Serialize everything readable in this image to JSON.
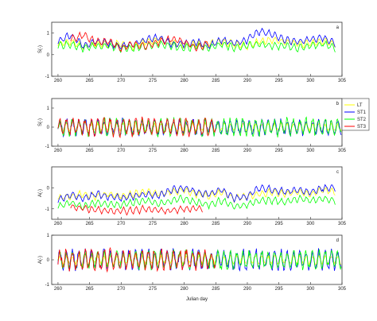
{
  "chart_data": {
    "type": "line",
    "xlabel": "Julian day",
    "xlim": [
      259,
      305
    ],
    "xticks": [
      260,
      265,
      270,
      275,
      280,
      285,
      290,
      295,
      300,
      305
    ],
    "grid": false,
    "legend": {
      "placement": "right of panel b",
      "entries": [
        "LT",
        "ST1",
        "ST2",
        "ST3"
      ]
    },
    "series_colors": {
      "LT": "#ffff00",
      "ST1": "#0000ff",
      "ST2": "#00ff00",
      "ST3": "#ff0000"
    },
    "panels": [
      {
        "id": "a",
        "letter": "a",
        "ylabel": "S(-)",
        "ylim": [
          -1,
          1.5
        ],
        "yticks": [
          -1,
          0,
          1
        ],
        "shape": "smooth",
        "series": [
          {
            "name": "LT",
            "x": [
              260,
              262,
              264,
              266,
              268,
              270,
              272,
              274,
              276,
              278,
              280,
              282,
              284,
              286,
              288,
              290,
              292,
              294,
              296,
              298,
              300,
              302,
              304
            ],
            "values": [
              0.5,
              0.6,
              0.4,
              0.5,
              0.5,
              0.5,
              0.4,
              0.6,
              0.7,
              0.6,
              0.4,
              0.5,
              0.5,
              0.6,
              0.5,
              0.4,
              0.6,
              0.7,
              0.6,
              0.5,
              0.5,
              0.6,
              0.5
            ]
          },
          {
            "name": "ST1",
            "x": [
              260,
              262,
              264,
              266,
              268,
              270,
              272,
              274,
              276,
              278,
              280,
              282,
              284,
              286,
              288,
              290,
              292,
              294,
              296,
              298,
              300,
              302,
              304
            ],
            "values": [
              0.6,
              0.9,
              0.4,
              0.6,
              0.5,
              0.4,
              0.5,
              0.7,
              0.8,
              0.5,
              0.5,
              0.6,
              0.4,
              0.7,
              0.5,
              0.7,
              1.1,
              0.9,
              0.7,
              0.6,
              0.7,
              0.8,
              0.5
            ]
          },
          {
            "name": "ST2",
            "x": [
              260,
              262,
              264,
              266,
              268,
              270,
              272,
              274,
              276,
              278,
              280,
              282,
              284,
              286,
              288,
              290,
              292,
              294,
              296,
              298,
              300,
              302,
              304
            ],
            "values": [
              0.4,
              0.5,
              0.3,
              0.4,
              0.4,
              0.3,
              0.3,
              0.4,
              0.5,
              0.4,
              0.3,
              0.4,
              0.3,
              0.5,
              0.3,
              0.4,
              0.5,
              0.4,
              0.4,
              0.3,
              0.4,
              0.5,
              0.3
            ]
          },
          {
            "name": "ST3",
            "x": [
              262,
              264,
              266,
              268,
              270,
              272,
              274,
              276,
              278,
              280,
              282,
              284
            ],
            "values": [
              0.7,
              0.9,
              0.6,
              0.6,
              0.3,
              0.5,
              0.4,
              0.6,
              0.7,
              0.6,
              0.3,
              0.6
            ]
          }
        ]
      },
      {
        "id": "b",
        "letter": "b",
        "ylabel": "S(-)",
        "ylim": [
          -1,
          1.5
        ],
        "yticks": [
          -1,
          0,
          1
        ],
        "shape": "oscillating",
        "series": [
          {
            "name": "LT",
            "x": [
              260,
              305
            ],
            "amplitude": [
              0.25,
              0.25
            ],
            "baseline": 0.0
          },
          {
            "name": "ST1",
            "x": [
              260,
              305
            ],
            "amplitude": [
              0.45,
              0.45
            ],
            "baseline": 0.0
          },
          {
            "name": "ST2",
            "x": [
              260,
              305
            ],
            "amplitude": [
              0.5,
              0.5
            ],
            "baseline": 0.0
          },
          {
            "name": "ST3",
            "x": [
              260,
              285
            ],
            "amplitude": [
              0.5,
              0.5
            ],
            "baseline": 0.0
          }
        ]
      },
      {
        "id": "c",
        "letter": "c",
        "ylabel": "A(-)",
        "ylim": [
          -1.5,
          1.0
        ],
        "yticks": [
          -1,
          0
        ],
        "shape": "smooth",
        "series": [
          {
            "name": "LT",
            "x": [
              260,
              262,
              264,
              266,
              268,
              270,
              272,
              274,
              276,
              278,
              280,
              282,
              284,
              286,
              288,
              290,
              292,
              294,
              296,
              298,
              300,
              302,
              304
            ],
            "values": [
              -0.5,
              -0.4,
              -0.3,
              -0.4,
              -0.3,
              -0.4,
              -0.3,
              -0.2,
              -0.3,
              -0.2,
              -0.1,
              -0.3,
              -0.4,
              -0.2,
              -0.5,
              -0.4,
              -0.3,
              -0.2,
              -0.3,
              -0.2,
              -0.3,
              -0.1,
              -0.2
            ]
          },
          {
            "name": "ST1",
            "x": [
              260,
              262,
              264,
              266,
              268,
              270,
              272,
              274,
              276,
              278,
              280,
              282,
              284,
              286,
              288,
              290,
              292,
              294,
              296,
              298,
              300,
              302,
              304
            ],
            "values": [
              -0.6,
              -0.3,
              -0.5,
              -0.3,
              -0.4,
              -0.5,
              -0.4,
              -0.3,
              -0.4,
              -0.1,
              0.0,
              -0.2,
              -0.3,
              -0.1,
              -0.5,
              -0.4,
              0.0,
              -0.1,
              -0.2,
              -0.1,
              -0.2,
              0.0,
              0.0
            ]
          },
          {
            "name": "ST2",
            "x": [
              260,
              262,
              264,
              266,
              268,
              270,
              272,
              274,
              276,
              278,
              280,
              282,
              284,
              286,
              288,
              290,
              292,
              294,
              296,
              298,
              300,
              302,
              304
            ],
            "values": [
              -0.9,
              -0.7,
              -0.9,
              -0.7,
              -0.8,
              -0.8,
              -0.7,
              -0.6,
              -0.8,
              -0.6,
              -0.5,
              -0.7,
              -0.8,
              -0.6,
              -0.9,
              -0.8,
              -0.6,
              -0.6,
              -0.7,
              -0.5,
              -0.6,
              -0.5,
              -0.6
            ]
          },
          {
            "name": "ST3",
            "x": [
              262,
              265,
              268,
              271,
              274,
              277,
              280,
              283
            ],
            "values": [
              -0.9,
              -1.0,
              -1.1,
              -1.1,
              -1.0,
              -1.1,
              -1.0,
              -1.0
            ]
          }
        ]
      },
      {
        "id": "d",
        "letter": "d",
        "ylabel": "A(-)",
        "ylim": [
          -1,
          1
        ],
        "yticks": [
          -1,
          0,
          1
        ],
        "shape": "oscillating",
        "series": [
          {
            "name": "LT",
            "x": [
              260,
              305
            ],
            "amplitude": [
              0.2,
              0.2
            ],
            "baseline": 0.0
          },
          {
            "name": "ST1",
            "x": [
              260,
              305
            ],
            "amplitude": [
              0.45,
              0.45
            ],
            "baseline": 0.0
          },
          {
            "name": "ST2",
            "x": [
              260,
              305
            ],
            "amplitude": [
              0.4,
              0.4
            ],
            "baseline": 0.0
          },
          {
            "name": "ST3",
            "x": [
              260,
              285
            ],
            "amplitude": [
              0.45,
              0.45
            ],
            "baseline": 0.0
          }
        ]
      }
    ]
  }
}
